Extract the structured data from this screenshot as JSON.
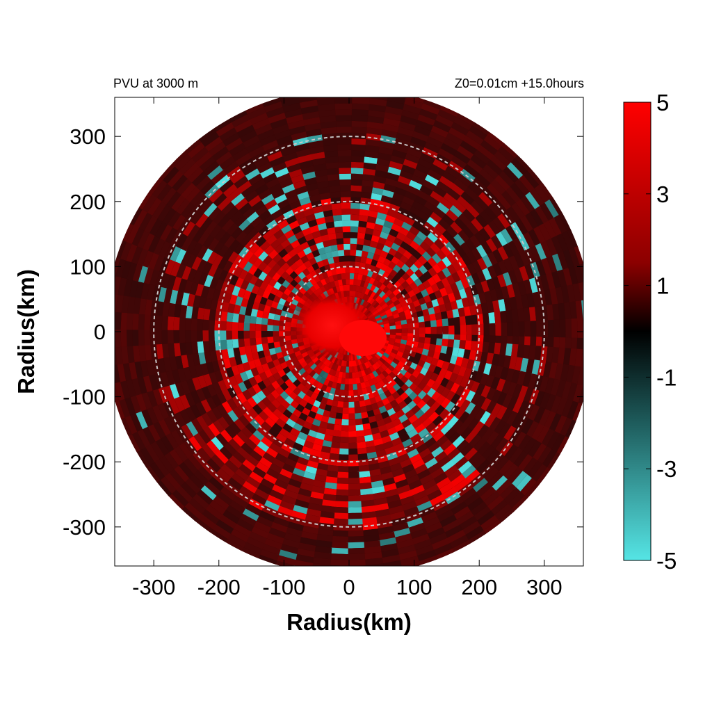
{
  "chart_data": {
    "type": "heatmap",
    "title_left": "PVU at  3000 m",
    "title_right": "Z0=0.01cm  +15.0hours",
    "xlabel": "Radius(km)",
    "ylabel": "Radius(km)",
    "xlim": [
      -360,
      360
    ],
    "ylim": [
      -360,
      360
    ],
    "x_ticks": [
      -300,
      -200,
      -100,
      0,
      100,
      200,
      300
    ],
    "y_ticks": [
      -300,
      -200,
      -100,
      0,
      100,
      200,
      300
    ],
    "x_tick_labels": [
      "-300",
      "-200",
      "-100",
      "0",
      "100",
      "200",
      "300"
    ],
    "y_tick_labels": [
      "-300",
      "-200",
      "-100",
      "0",
      "100",
      "200",
      "300"
    ],
    "domain_radius_km": 375,
    "reference_circles_km": [
      100,
      200,
      300
    ],
    "grid": false,
    "colorbar": {
      "range": [
        -5,
        5
      ],
      "ticks": [
        5,
        3,
        1,
        -1,
        -3,
        -5
      ],
      "tick_labels": [
        "5",
        "3",
        "1",
        "-1",
        "-3",
        "-5"
      ],
      "colors": {
        "max": "#ff0000",
        "mid": "#000000",
        "min": "#55e5e5"
      }
    },
    "field_description_values": {
      "core_max_value": 5,
      "background_value": 1,
      "negative_band_min_value": -5
    }
  }
}
